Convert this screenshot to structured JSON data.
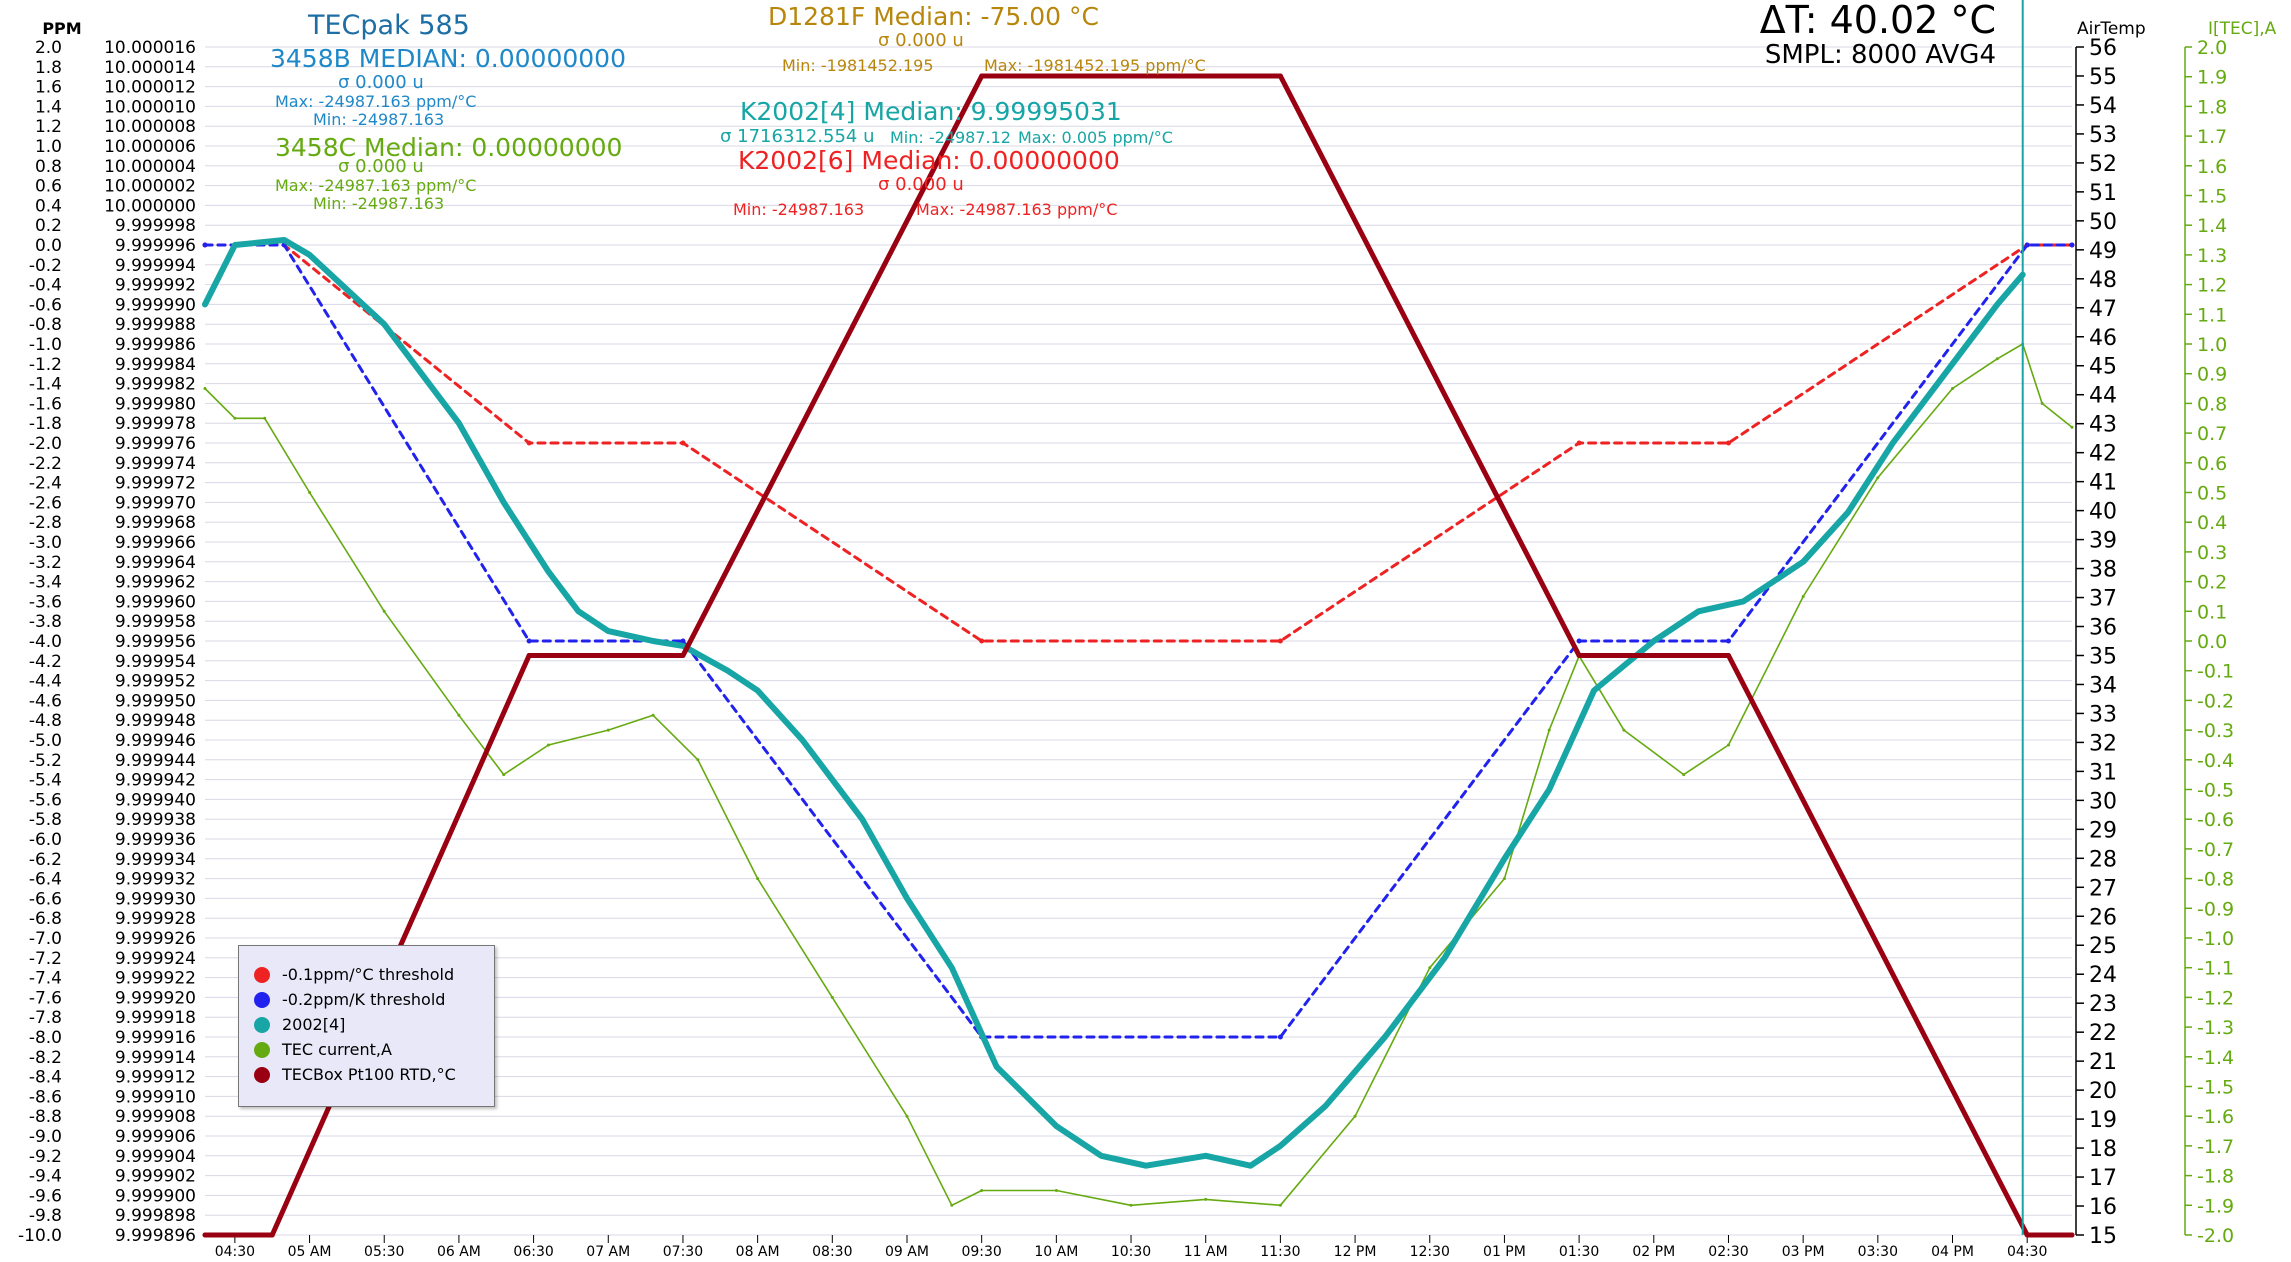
{
  "header": {
    "title": "TECpak 585",
    "delta_t": "ΔT: 40.02 °C",
    "sampling": "SMPL: 8000 AVG4"
  },
  "annotations": {
    "b3458": {
      "median": "3458B MEDIAN: 0.00000000",
      "sigma": "σ 0.000 u",
      "max": "Max: -24987.163 ppm/°C",
      "min": "Min: -24987.163"
    },
    "c3458": {
      "median": "3458C Median: 0.00000000",
      "sigma": "σ 0.000 u",
      "max": "Max: -24987.163 ppm/°C",
      "min": "Min: -24987.163"
    },
    "d1281": {
      "median": "D1281F Median: -75.00 °C",
      "sigma": "σ 0.000 u",
      "min": "Min: -1981452.195",
      "max": "Max: -1981452.195 ppm/°C"
    },
    "k2002_4": {
      "median": "K2002[4] Median: 9.99995031",
      "sigma": "σ 1716312.554 u",
      "min": "Min: -24987.12",
      "max": "Max: 0.005 ppm/°C"
    },
    "k2002_6": {
      "median": "K2002[6] Median: 0.00000000",
      "sigma": "σ 0.000 u",
      "min": "Min: -24987.163",
      "max": "Max: -24987.163 ppm/°C"
    }
  },
  "legend": [
    {
      "label": "-0.1ppm/°C threshold",
      "color": "#ee2222"
    },
    {
      "label": "-0.2ppm/K threshold",
      "color": "#2222ee"
    },
    {
      "label": "2002[4]",
      "color": "#17a5a5"
    },
    {
      "label": "TEC current,A",
      "color": "#66aa11"
    },
    {
      "label": "TECBox Pt100 RTD,°C",
      "color": "#990011"
    }
  ],
  "colors": {
    "blue_title": "#1c6ea4",
    "b3458": "#1e88c8",
    "c3458": "#66aa11",
    "d1281": "#b8860b",
    "k2002_4": "#17a5a5",
    "k2002_6": "#ee2222"
  },
  "chart_data": {
    "type": "line",
    "x_tick_labels": [
      "04:30",
      "05 AM",
      "05:30",
      "06 AM",
      "06:30",
      "07 AM",
      "07:30",
      "08 AM",
      "08:30",
      "09 AM",
      "09:30",
      "10 AM",
      "10:30",
      "11 AM",
      "11:30",
      "12 PM",
      "12:30",
      "01 PM",
      "01:30",
      "02 PM",
      "02:30",
      "03 PM",
      "03:30",
      "04 PM",
      "04:30"
    ],
    "xlim": [
      4.3,
      16.8
    ],
    "axes": {
      "ppm": {
        "label": "PPM",
        "ylim": [
          -10.0,
          2.0
        ],
        "step": 0.2
      },
      "value": {
        "ylim": [
          9.999896,
          10.000012
        ],
        "step": 2e-06
      },
      "airtemp": {
        "label": "AirTemp",
        "ylim": [
          15,
          56
        ],
        "step": 1
      },
      "itec": {
        "label": "I[TEC],A",
        "ylim": [
          -2.0,
          2.0
        ],
        "step": 0.1
      }
    },
    "cursor_x": 16.47,
    "series": [
      {
        "name": "-0.1ppm/°C threshold",
        "axis": "ppm",
        "style": "dashed",
        "color": "#ee2222",
        "x": [
          4.3,
          4.83,
          6.47,
          7.5,
          9.5,
          11.5,
          13.5,
          14.5,
          16.5,
          16.8
        ],
        "y": [
          0.0,
          0.0,
          -2.0,
          -2.0,
          -4.0,
          -4.0,
          -2.0,
          -2.0,
          0.0,
          0.0
        ]
      },
      {
        "name": "-0.2ppm/K threshold",
        "axis": "ppm",
        "style": "dashed",
        "color": "#2222ee",
        "x": [
          4.3,
          4.83,
          6.47,
          7.5,
          9.5,
          11.5,
          13.5,
          14.5,
          16.5,
          16.8
        ],
        "y": [
          0.0,
          0.0,
          -4.0,
          -4.0,
          -8.0,
          -8.0,
          -4.0,
          -4.0,
          0.0,
          0.0
        ]
      },
      {
        "name": "2002[4]",
        "axis": "ppm",
        "style": "thick",
        "color": "#17a5a5",
        "x": [
          4.3,
          4.5,
          4.83,
          5.0,
          5.5,
          6.0,
          6.3,
          6.6,
          6.8,
          7.0,
          7.3,
          7.5,
          7.8,
          8.0,
          8.3,
          8.7,
          9.0,
          9.3,
          9.6,
          10.0,
          10.3,
          10.6,
          11.0,
          11.3,
          11.5,
          11.8,
          12.2,
          12.6,
          13.0,
          13.3,
          13.6,
          14.0,
          14.3,
          14.6,
          15.0,
          15.3,
          15.6,
          16.0,
          16.3,
          16.47
        ],
        "y": [
          -0.6,
          0.0,
          0.05,
          -0.1,
          -0.8,
          -1.8,
          -2.6,
          -3.3,
          -3.7,
          -3.9,
          -4.0,
          -4.05,
          -4.3,
          -4.5,
          -5.0,
          -5.8,
          -6.6,
          -7.3,
          -8.3,
          -8.9,
          -9.2,
          -9.3,
          -9.2,
          -9.3,
          -9.1,
          -8.7,
          -8.0,
          -7.2,
          -6.2,
          -5.5,
          -4.5,
          -4.0,
          -3.7,
          -3.6,
          -3.2,
          -2.7,
          -2.0,
          -1.2,
          -0.6,
          -0.3
        ]
      },
      {
        "name": "TEC current,A",
        "axis": "itec",
        "style": "thin",
        "color": "#66aa11",
        "x": [
          4.3,
          4.5,
          4.7,
          5.0,
          5.5,
          6.0,
          6.3,
          6.6,
          7.0,
          7.3,
          7.6,
          8.0,
          8.5,
          9.0,
          9.3,
          9.5,
          10.0,
          10.5,
          11.0,
          11.5,
          12.0,
          12.5,
          13.0,
          13.3,
          13.5,
          13.8,
          14.2,
          14.5,
          15.0,
          15.5,
          16.0,
          16.3,
          16.47,
          16.6,
          16.8
        ],
        "y": [
          0.85,
          0.75,
          0.75,
          0.5,
          0.1,
          -0.25,
          -0.45,
          -0.35,
          -0.3,
          -0.25,
          -0.4,
          -0.8,
          -1.2,
          -1.6,
          -1.9,
          -1.85,
          -1.85,
          -1.9,
          -1.88,
          -1.9,
          -1.6,
          -1.1,
          -0.8,
          -0.3,
          -0.05,
          -0.3,
          -0.45,
          -0.35,
          0.15,
          0.55,
          0.85,
          0.95,
          1.0,
          0.8,
          0.72
        ]
      },
      {
        "name": "TECBox Pt100 RTD,°C",
        "axis": "airtemp",
        "style": "thick",
        "color": "#990011",
        "x": [
          4.3,
          4.75,
          6.47,
          7.5,
          9.5,
          11.5,
          13.5,
          14.5,
          16.5,
          16.8
        ],
        "y": [
          15,
          15,
          35,
          35,
          55,
          55,
          35,
          35,
          15,
          15
        ]
      }
    ]
  }
}
